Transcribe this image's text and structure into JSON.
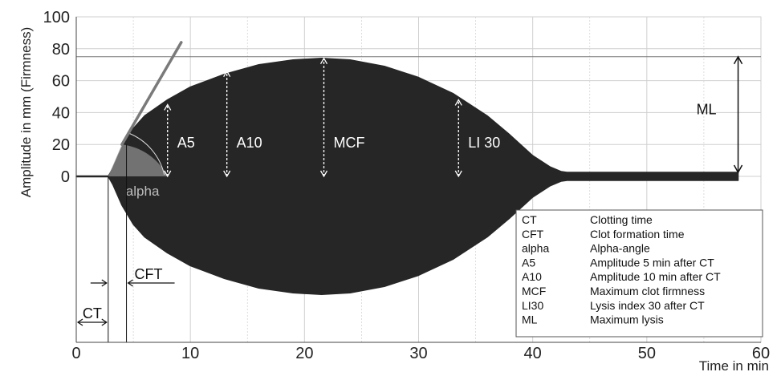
{
  "chart_data": {
    "type": "area",
    "ylabel": "Amplitude in mm (Firmness)",
    "xlabel": "Time in min",
    "xlim": [
      0,
      60
    ],
    "ylim": [
      0,
      100
    ],
    "x_ticks": [
      "0",
      "10",
      "20",
      "30",
      "40",
      "50",
      "60"
    ],
    "y_ticks": [
      "0",
      "20",
      "40",
      "60",
      "80",
      "100"
    ],
    "grid": true,
    "series": [
      {
        "x": [
          0,
          2.8,
          3.2,
          4,
          5,
          6,
          8,
          10,
          13,
          16,
          19,
          21.5,
          24,
          27,
          30,
          33,
          36,
          38,
          40,
          41.5,
          42.5,
          43,
          50,
          58
        ],
        "y": [
          0,
          0,
          5,
          18,
          30,
          38,
          48,
          56,
          64,
          70,
          73,
          74,
          73,
          69,
          62,
          52,
          38,
          26,
          13,
          6,
          3,
          2.5,
          2.5,
          2.5
        ]
      }
    ],
    "alpha_tangent": {
      "x": [
        4,
        9.2
      ],
      "y": [
        20,
        84
      ]
    },
    "mcf_line_y": 75,
    "measurements": [
      {
        "label": "A5",
        "x": 8,
        "y": 45
      },
      {
        "label": "A10",
        "x": 13.2,
        "y": 66
      },
      {
        "label": "MCF",
        "x": 21.7,
        "y": 74
      },
      {
        "label": "LI 30",
        "x": 33.5,
        "y": 48
      }
    ],
    "ml": {
      "label": "ML",
      "x": 58,
      "y_top": 75,
      "y_bottom": 2.5
    },
    "alpha_label": "alpha",
    "ct": {
      "label": "CT",
      "x_start": 0,
      "x_end": 2.8
    },
    "cft": {
      "label": "CFT",
      "x_start": 2.8,
      "x_end": 4.4
    }
  },
  "legend": [
    {
      "abbr": "CT",
      "desc": "Clotting time"
    },
    {
      "abbr": "CFT",
      "desc": "Clot formation time"
    },
    {
      "abbr": "alpha",
      "desc": "Alpha-angle"
    },
    {
      "abbr": "A5",
      "desc": "Amplitude 5 min after CT"
    },
    {
      "abbr": "A10",
      "desc": "Amplitude 10 min after CT"
    },
    {
      "abbr": "MCF",
      "desc": "Maximum clot firmness"
    },
    {
      "abbr": "LI30",
      "desc": "Lysis index 30 after CT"
    },
    {
      "abbr": "ML",
      "desc": "Maximum lysis"
    }
  ],
  "colors": {
    "trace": "#262626",
    "tangent": "#7a7a7a",
    "alpha_fill": "#8c8c8c",
    "grid": "#cfcfcf",
    "axis": "#444444"
  }
}
